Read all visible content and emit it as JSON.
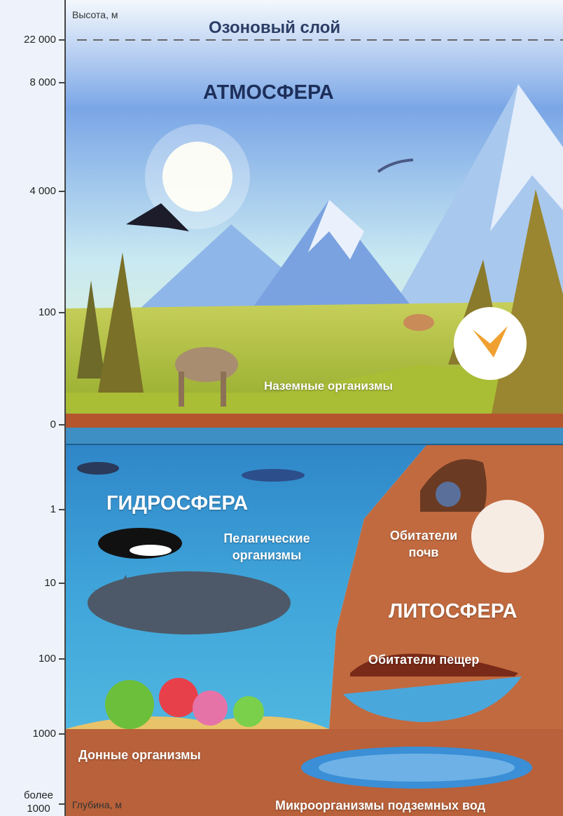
{
  "scale": {
    "top_label": "Высота, м",
    "bottom_label": "Глубина, м",
    "ticks": [
      "22 000",
      "8 000",
      "4 000",
      "100",
      "0",
      "1",
      "10",
      "100",
      "1000",
      "более 1000"
    ]
  },
  "labels": {
    "ozone": "Озоновый слой",
    "atmosphere": "АТМОСФЕРА",
    "hydrosphere": "ГИДРОСФЕРА",
    "lithosphere": "ЛИТОСФЕРА",
    "land_organisms": "Наземные организмы",
    "pelagic": "Пелагические организмы",
    "soil": "Обитатели почв",
    "caves": "Обитатели пещер",
    "benthic": "Донные организмы",
    "groundwater": "Микроорганизмы подземных вод"
  }
}
